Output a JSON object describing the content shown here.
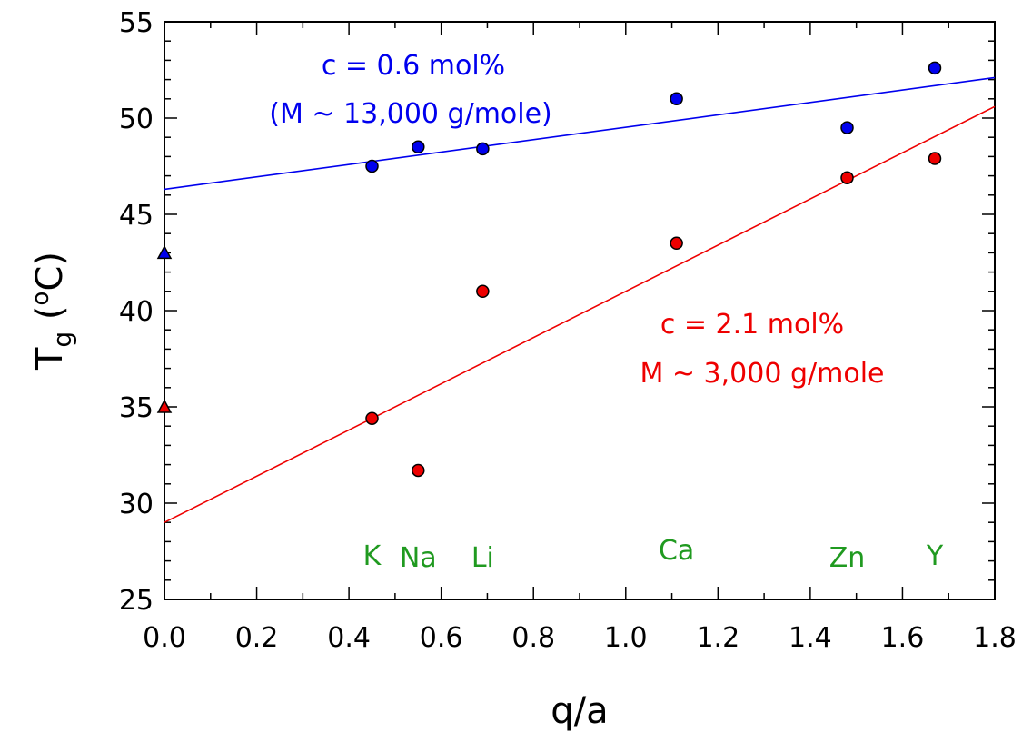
{
  "chart_data": {
    "type": "scatter",
    "title": "",
    "xlabel": "q/a",
    "ylabel": {
      "main": "T",
      "sub": "g",
      "unit_open": " (",
      "unit_sup": "o",
      "unit_rest": "C)"
    },
    "xlim": [
      0.0,
      1.8
    ],
    "ylim": [
      25,
      55
    ],
    "x_ticks": [
      "0.0",
      "0.2",
      "0.4",
      "0.6",
      "0.8",
      "1.0",
      "1.2",
      "1.4",
      "1.6",
      "1.8"
    ],
    "y_ticks": [
      "25",
      "30",
      "35",
      "40",
      "45",
      "50",
      "55"
    ],
    "grid": false,
    "series": [
      {
        "color": "#0000ee",
        "points": [
          {
            "x": 0.45,
            "y": 47.5
          },
          {
            "x": 0.55,
            "y": 48.5
          },
          {
            "x": 0.69,
            "y": 48.4
          },
          {
            "x": 1.11,
            "y": 51.0
          },
          {
            "x": 1.48,
            "y": 49.5
          },
          {
            "x": 1.67,
            "y": 52.6
          }
        ],
        "reference": {
          "x": 0.0,
          "y": 43.0,
          "marker": "triangle"
        },
        "fit": {
          "x": [
            0.0,
            1.8
          ],
          "y": [
            46.3,
            52.1
          ]
        },
        "annotation": [
          "c = 0.6 mol%",
          "(M ~ 13,000 g/mole)"
        ]
      },
      {
        "color": "#ee0000",
        "points": [
          {
            "x": 0.45,
            "y": 34.4
          },
          {
            "x": 0.55,
            "y": 31.7
          },
          {
            "x": 0.69,
            "y": 41.0
          },
          {
            "x": 1.11,
            "y": 43.5
          },
          {
            "x": 1.48,
            "y": 46.9
          },
          {
            "x": 1.67,
            "y": 47.9
          }
        ],
        "reference": {
          "x": 0.0,
          "y": 35.0,
          "marker": "triangle"
        },
        "fit": {
          "x": [
            0.0,
            1.8
          ],
          "y": [
            29.0,
            50.6
          ]
        },
        "annotation": [
          "c = 2.1 mol%",
          "M ~ 3,000 g/mole"
        ]
      }
    ],
    "element_labels": {
      "color": "#209a20",
      "items": [
        {
          "text": "K",
          "x": 0.45
        },
        {
          "text": "Na",
          "x": 0.55
        },
        {
          "text": "Li",
          "x": 0.69
        },
        {
          "text": "Ca",
          "x": 1.11
        },
        {
          "text": "Zn",
          "x": 1.48
        },
        {
          "text": "Y",
          "x": 1.67
        }
      ]
    }
  }
}
